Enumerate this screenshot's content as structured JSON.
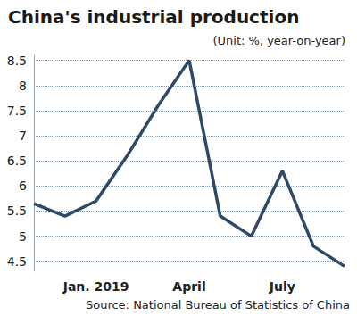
{
  "chart_data": {
    "type": "line",
    "title": "China's industrial production",
    "subtitle": "(Unit: %, year-on-year)",
    "source": "Source: National Bureau of Statistics of China",
    "categories": [
      null,
      null,
      "Jan. 2019",
      null,
      null,
      "April",
      null,
      null,
      "July",
      null,
      null
    ],
    "values": [
      5.65,
      5.4,
      5.7,
      6.6,
      7.6,
      8.5,
      5.4,
      5.0,
      6.3,
      4.8,
      4.4
    ],
    "color": "#2e4a66",
    "ylim": [
      4.3,
      8.6
    ],
    "yticks": [
      4.5,
      5,
      5.5,
      6,
      6.5,
      7,
      7.5,
      8,
      8.5
    ],
    "grid": true
  }
}
